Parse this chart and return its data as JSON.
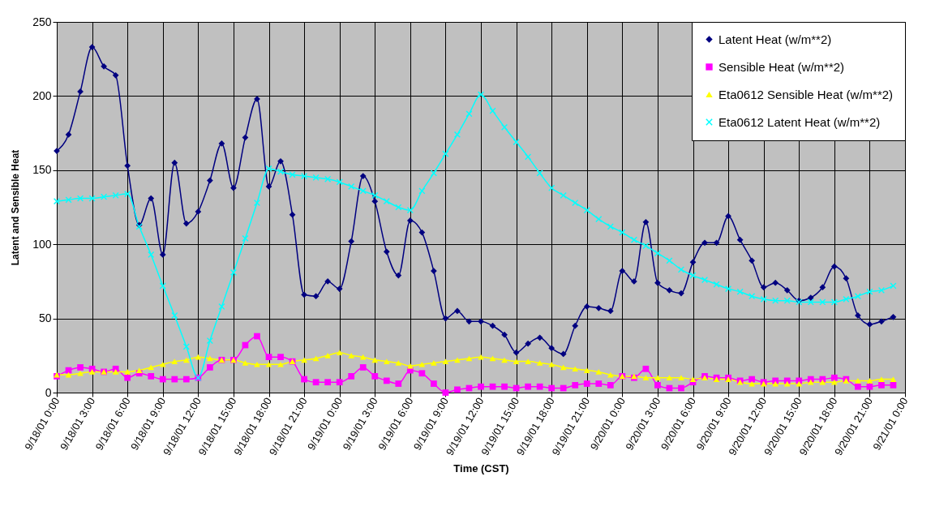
{
  "chart_data": {
    "type": "line",
    "xlabel": "Time (CST)",
    "ylabel": "Latent and Sensible Heat",
    "x": [
      "--09-18T00:00",
      "--09-18T01:00",
      "--09-18T02:00",
      "--09-18T03:00",
      "--09-18T04:00",
      "--09-18T05:00",
      "--09-18T06:00",
      "--09-18T07:00",
      "--09-18T08:00",
      "--09-18T09:00",
      "--09-18T10:00",
      "--09-18T11:00",
      "--09-18T12:00",
      "--09-18T13:00",
      "--09-18T14:00",
      "--09-18T15:00",
      "--09-18T16:00",
      "--09-18T17:00",
      "--09-18T18:00",
      "--09-18T19:00",
      "--09-18T20:00",
      "--09-18T21:00",
      "--09-18T22:00",
      "--09-18T23:00",
      "--09-19T00:00",
      "--09-19T01:00",
      "--09-19T02:00",
      "--09-19T03:00",
      "--09-19T04:00",
      "--09-19T05:00",
      "--09-19T06:00",
      "--09-19T07:00",
      "--09-19T08:00",
      "--09-19T09:00",
      "--09-19T10:00",
      "--09-19T11:00",
      "--09-19T12:00",
      "--09-19T13:00",
      "--09-19T14:00",
      "--09-19T15:00",
      "--09-19T16:00",
      "--09-19T17:00",
      "--09-19T18:00",
      "--09-19T19:00",
      "--09-19T20:00",
      "--09-19T21:00",
      "--09-19T22:00",
      "--09-19T23:00",
      "--09-20T00:00",
      "--09-20T01:00",
      "--09-20T02:00",
      "--09-20T03:00",
      "--09-20T04:00",
      "--09-20T05:00",
      "--09-20T06:00",
      "--09-20T07:00",
      "--09-20T08:00",
      "--09-20T09:00",
      "--09-20T10:00",
      "--09-20T11:00",
      "--09-20T12:00",
      "--09-20T13:00",
      "--09-20T14:00",
      "--09-20T15:00",
      "--09-20T16:00",
      "--09-20T17:00",
      "--09-20T18:00",
      "--09-20T19:00",
      "--09-20T20:00",
      "--09-20T21:00",
      "--09-20T22:00",
      "--09-20T23:00"
    ],
    "series": [
      {
        "name": "Latent Heat (w/m**2)",
        "color": "#000080",
        "marker": "diamond",
        "values": [
          163,
          174,
          203,
          233,
          220,
          214,
          153,
          113,
          131,
          93,
          155,
          114,
          122,
          143,
          168,
          138,
          172,
          198,
          139,
          156,
          120,
          66,
          65,
          75,
          70,
          102,
          146,
          129,
          95,
          79,
          116,
          108,
          82,
          50,
          55,
          48,
          48,
          45,
          39,
          27,
          33,
          37,
          30,
          26,
          45,
          58,
          57,
          55,
          82,
          75,
          115,
          74,
          69,
          67,
          88,
          101,
          101,
          119,
          103,
          89,
          71,
          74,
          69,
          62,
          64,
          71,
          85,
          77,
          52,
          46,
          48,
          51
        ]
      },
      {
        "name": "Sensible Heat (w/m**2)",
        "color": "#ff00ff",
        "marker": "square",
        "values": [
          11,
          15,
          17,
          16,
          14,
          16,
          10,
          13,
          11,
          9,
          9,
          9,
          10,
          17,
          22,
          22,
          32,
          38,
          24,
          24,
          21,
          9,
          7,
          7,
          7,
          11,
          17,
          11,
          8,
          6,
          15,
          13,
          6,
          0,
          2,
          3,
          4,
          4,
          4,
          3,
          4,
          4,
          3,
          3,
          5,
          6,
          6,
          5,
          11,
          10,
          16,
          5,
          3,
          3,
          7,
          11,
          10,
          10,
          8,
          9,
          7,
          8,
          8,
          8,
          9,
          9,
          10,
          9,
          4,
          4,
          5,
          5
        ]
      },
      {
        "name": "Eta0612 Sensible Heat (w/m**2)",
        "color": "#ffff00",
        "marker": "triangle",
        "values": [
          12,
          12,
          13,
          14,
          14,
          14,
          14,
          15,
          17,
          19,
          21,
          22,
          24,
          23,
          22,
          22,
          20,
          19,
          19,
          19,
          21,
          22,
          23,
          25,
          27,
          25,
          24,
          22,
          21,
          20,
          18,
          19,
          20,
          21,
          22,
          23,
          24,
          23,
          22,
          21,
          21,
          20,
          19,
          17,
          16,
          15,
          14,
          12,
          11,
          11,
          10,
          10,
          10,
          10,
          9,
          10,
          9,
          9,
          7,
          6,
          6,
          6,
          6,
          6,
          7,
          7,
          7,
          8,
          8,
          8,
          9,
          9
        ]
      },
      {
        "name": "Eta0612 Latent Heat (w/m**2)",
        "color": "#00ffff",
        "marker": "cross",
        "values": [
          129,
          130,
          131,
          131,
          132,
          133,
          134,
          112,
          93,
          72,
          52,
          31,
          10,
          35,
          58,
          81,
          104,
          128,
          151,
          149,
          147,
          146,
          145,
          144,
          142,
          139,
          136,
          133,
          129,
          125,
          123,
          136,
          148,
          161,
          174,
          188,
          201,
          190,
          179,
          169,
          159,
          148,
          138,
          133,
          128,
          123,
          117,
          112,
          108,
          103,
          99,
          94,
          89,
          83,
          79,
          76,
          73,
          70,
          68,
          65,
          63,
          62,
          62,
          61,
          61,
          61,
          61,
          63,
          65,
          68,
          69,
          72
        ]
      }
    ],
    "xlim": [
      "--09-18T00:00",
      "--09-21T00:00"
    ],
    "xticks": [
      {
        "value": "--09-18T00:00",
        "label": "9/18/01 0:00"
      },
      {
        "value": "--09-18T03:00",
        "label": "9/18/01 3:00"
      },
      {
        "value": "--09-18T06:00",
        "label": "9/18/01 6:00"
      },
      {
        "value": "--09-18T09:00",
        "label": "9/18/01 9:00"
      },
      {
        "value": "--09-18T12:00",
        "label": "9/18/01 12:00"
      },
      {
        "value": "--09-18T15:00",
        "label": "9/18/01 15:00"
      },
      {
        "value": "--09-18T18:00",
        "label": "9/18/01 18:00"
      },
      {
        "value": "--09-18T21:00",
        "label": "9/18/01 21:00"
      },
      {
        "value": "--09-19T00:00",
        "label": "9/19/01 0:00"
      },
      {
        "value": "--09-19T03:00",
        "label": "9/19/01 3:00"
      },
      {
        "value": "--09-19T06:00",
        "label": "9/19/01 6:00"
      },
      {
        "value": "--09-19T09:00",
        "label": "9/19/01 9:00"
      },
      {
        "value": "--09-19T12:00",
        "label": "9/19/01 12:00"
      },
      {
        "value": "--09-19T15:00",
        "label": "9/19/01 15:00"
      },
      {
        "value": "--09-19T18:00",
        "label": "9/19/01 18:00"
      },
      {
        "value": "--09-19T21:00",
        "label": "9/19/01 21:00"
      },
      {
        "value": "--09-20T00:00",
        "label": "9/20/01 0:00"
      },
      {
        "value": "--09-20T03:00",
        "label": "9/20/01 3:00"
      },
      {
        "value": "--09-20T06:00",
        "label": "9/20/01 6:00"
      },
      {
        "value": "--09-20T09:00",
        "label": "9/20/01 9:00"
      },
      {
        "value": "--09-20T12:00",
        "label": "9/20/01 12:00"
      },
      {
        "value": "--09-20T15:00",
        "label": "9/20/01 15:00"
      },
      {
        "value": "--09-20T18:00",
        "label": "9/20/01 18:00"
      },
      {
        "value": "--09-20T21:00",
        "label": "9/20/01 21:00"
      },
      {
        "value": "--09-21T00:00",
        "label": "9/21/01 0:00"
      }
    ],
    "ylim": [
      0,
      250
    ],
    "yticks": [
      0,
      50,
      100,
      150,
      200,
      250
    ],
    "grid": true,
    "legend": "top right"
  }
}
